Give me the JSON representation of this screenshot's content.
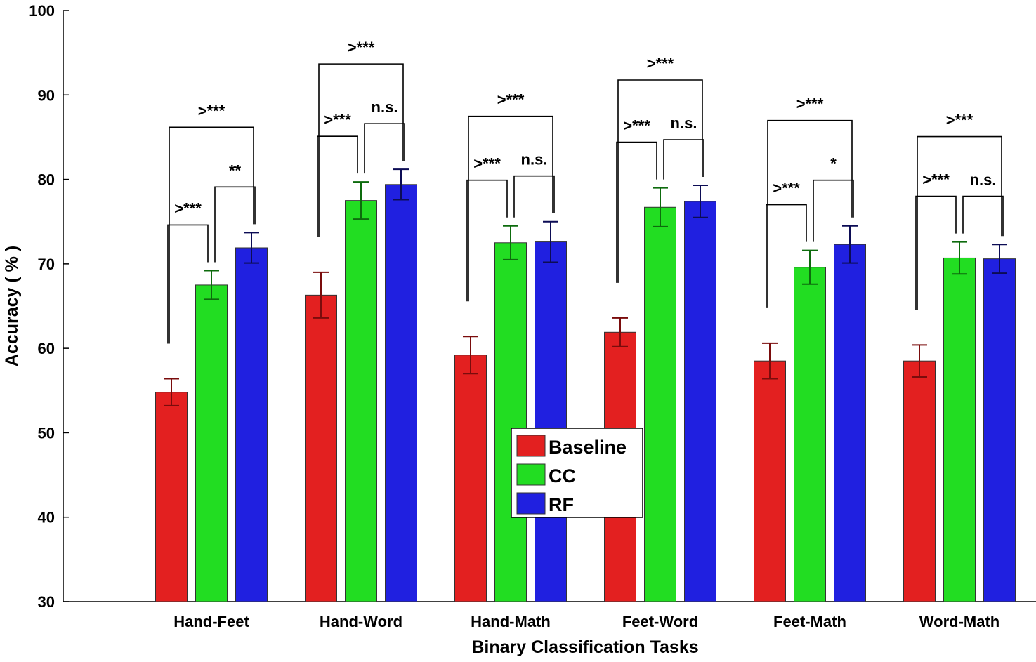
{
  "chart_data": {
    "type": "bar",
    "xlabel": "Binary Classification Tasks",
    "ylabel": "Accuracy ( % )",
    "ylim": [
      30,
      100
    ],
    "yticks": [
      30,
      40,
      50,
      60,
      70,
      80,
      90,
      100
    ],
    "grid": false,
    "legend_position": "center",
    "categories": [
      "Hand-Feet",
      "Hand-Word",
      "Hand-Math",
      "Feet-Word",
      "Feet-Math",
      "Word-Math"
    ],
    "series": [
      {
        "name": "Baseline",
        "color": "#e32020",
        "error_color": "#7a0c0c",
        "values": [
          54.8,
          66.3,
          59.2,
          61.9,
          58.5,
          58.5
        ],
        "errors": [
          1.6,
          2.7,
          2.2,
          1.7,
          2.1,
          1.9
        ]
      },
      {
        "name": "CC",
        "color": "#22dd22",
        "error_color": "#0d6b0d",
        "values": [
          67.5,
          77.5,
          72.5,
          76.7,
          69.6,
          70.7
        ],
        "errors": [
          1.7,
          2.2,
          2.0,
          2.3,
          2.0,
          1.9
        ]
      },
      {
        "name": "RF",
        "color": "#2020e0",
        "error_color": "#0c0c55",
        "values": [
          71.9,
          79.4,
          72.6,
          77.4,
          72.3,
          70.6
        ],
        "errors": [
          1.8,
          1.8,
          2.4,
          1.9,
          2.2,
          1.7
        ]
      }
    ],
    "significance": [
      {
        "category": 0,
        "pairs": [
          {
            "from": 0,
            "to": 1,
            "label": ">***"
          },
          {
            "from": 1,
            "to": 2,
            "label": "**"
          },
          {
            "from": 0,
            "to": 2,
            "label": ">***"
          }
        ]
      },
      {
        "category": 1,
        "pairs": [
          {
            "from": 0,
            "to": 1,
            "label": ">***"
          },
          {
            "from": 1,
            "to": 2,
            "label": "n.s."
          },
          {
            "from": 0,
            "to": 2,
            "label": ">***"
          }
        ]
      },
      {
        "category": 2,
        "pairs": [
          {
            "from": 0,
            "to": 1,
            "label": ">***"
          },
          {
            "from": 1,
            "to": 2,
            "label": "n.s."
          },
          {
            "from": 0,
            "to": 2,
            "label": ">***"
          }
        ]
      },
      {
        "category": 3,
        "pairs": [
          {
            "from": 0,
            "to": 1,
            "label": ">***"
          },
          {
            "from": 1,
            "to": 2,
            "label": "n.s."
          },
          {
            "from": 0,
            "to": 2,
            "label": ">***"
          }
        ]
      },
      {
        "category": 4,
        "pairs": [
          {
            "from": 0,
            "to": 1,
            "label": ">***"
          },
          {
            "from": 1,
            "to": 2,
            "label": "*"
          },
          {
            "from": 0,
            "to": 2,
            "label": ">***"
          }
        ]
      },
      {
        "category": 5,
        "pairs": [
          {
            "from": 0,
            "to": 1,
            "label": ">***"
          },
          {
            "from": 1,
            "to": 2,
            "label": "n.s."
          },
          {
            "from": 0,
            "to": 2,
            "label": ">***"
          }
        ]
      }
    ]
  }
}
